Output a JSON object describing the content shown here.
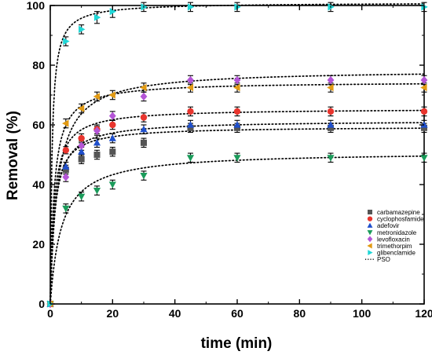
{
  "chart_data": {
    "type": "scatter",
    "title": "",
    "xlabel": "time (min)",
    "ylabel": "Removal (%)",
    "xlim": [
      0,
      120
    ],
    "ylim": [
      0,
      100
    ],
    "xticks": [
      0,
      20,
      40,
      60,
      80,
      100,
      120
    ],
    "yticks": [
      0,
      20,
      40,
      60,
      80,
      100
    ],
    "grid": false,
    "legend_position": "bottom-right",
    "x": [
      0,
      5,
      10,
      15,
      20,
      30,
      45,
      60,
      90,
      120
    ],
    "series": [
      {
        "name": "carbamazepine",
        "marker": "square",
        "color": "#555555",
        "values": [
          0,
          45,
          48.5,
          50,
          51,
          54,
          59,
          59,
          59,
          59
        ],
        "errors": [
          0,
          1.5,
          1.5,
          1.5,
          1.5,
          1.5,
          1.5,
          1.5,
          1.5,
          1.5
        ]
      },
      {
        "name": "cyclophosfamide",
        "marker": "circle",
        "color": "#e8352e",
        "values": [
          0,
          51.5,
          55.5,
          58.5,
          60,
          62.5,
          64.5,
          64.5,
          64.5,
          64.5
        ],
        "errors": [
          0,
          1.2,
          1.5,
          1.5,
          1.5,
          1.5,
          1.5,
          1.5,
          1.5,
          1.5
        ]
      },
      {
        "name": "adefovir",
        "marker": "triangle-up",
        "color": "#1f4fcc",
        "values": [
          0,
          46,
          51,
          54,
          55.5,
          58.5,
          60,
          60,
          60,
          60
        ],
        "errors": [
          0,
          1.5,
          1.5,
          1.5,
          1.5,
          1.5,
          1.5,
          1.5,
          1.5,
          1.5
        ]
      },
      {
        "name": "metronidazole",
        "marker": "triangle-down",
        "color": "#1a9b5a",
        "values": [
          0,
          32,
          36,
          38,
          40,
          43,
          49,
          49,
          49,
          49
        ],
        "errors": [
          0,
          1.5,
          1.5,
          1.5,
          1.5,
          1.5,
          1.5,
          1.5,
          1.5,
          1.5
        ]
      },
      {
        "name": "levofloxacin",
        "marker": "diamond",
        "color": "#b455d6",
        "values": [
          0,
          42.5,
          53,
          58,
          63,
          69.5,
          75,
          75,
          75,
          75
        ],
        "errors": [
          0,
          1.5,
          1.5,
          1.5,
          1.5,
          1.5,
          1.5,
          1.5,
          1.5,
          1.5
        ]
      },
      {
        "name": "trimethorpim",
        "marker": "triangle-left",
        "color": "#e29a12",
        "values": [
          0,
          60.5,
          65.5,
          69.5,
          70,
          72.5,
          72.5,
          72.5,
          72.5,
          72.5
        ],
        "errors": [
          0,
          1.5,
          1.5,
          1.5,
          1.5,
          1.5,
          1.5,
          1.5,
          1.5,
          1.5
        ]
      },
      {
        "name": "glibenclamide",
        "marker": "triangle-right",
        "color": "#1fd6d6",
        "values": [
          0,
          88,
          92,
          96,
          98,
          99.5,
          99.5,
          99.5,
          99.5,
          99.5
        ],
        "errors": [
          0,
          1.5,
          1.5,
          2,
          2,
          1.5,
          1.5,
          1.5,
          1.5,
          1.5
        ]
      }
    ],
    "fit_curves": [
      {
        "for": "carbamazepine",
        "qe": 59.5,
        "k": 0.0135
      },
      {
        "for": "cyclophosfamide",
        "qe": 65.5,
        "k": 0.0125
      },
      {
        "for": "adefovir",
        "qe": 61.5,
        "k": 0.011
      },
      {
        "for": "metronidazole",
        "qe": 51.0,
        "k": 0.0055
      },
      {
        "for": "levofloxacin",
        "qe": 78.5,
        "k": 0.0055
      },
      {
        "for": "trimethorpim",
        "qe": 74.5,
        "k": 0.011
      },
      {
        "for": "glibenclamide",
        "qe": 101.0,
        "k": 0.018
      }
    ],
    "fit_label": "PSO"
  }
}
